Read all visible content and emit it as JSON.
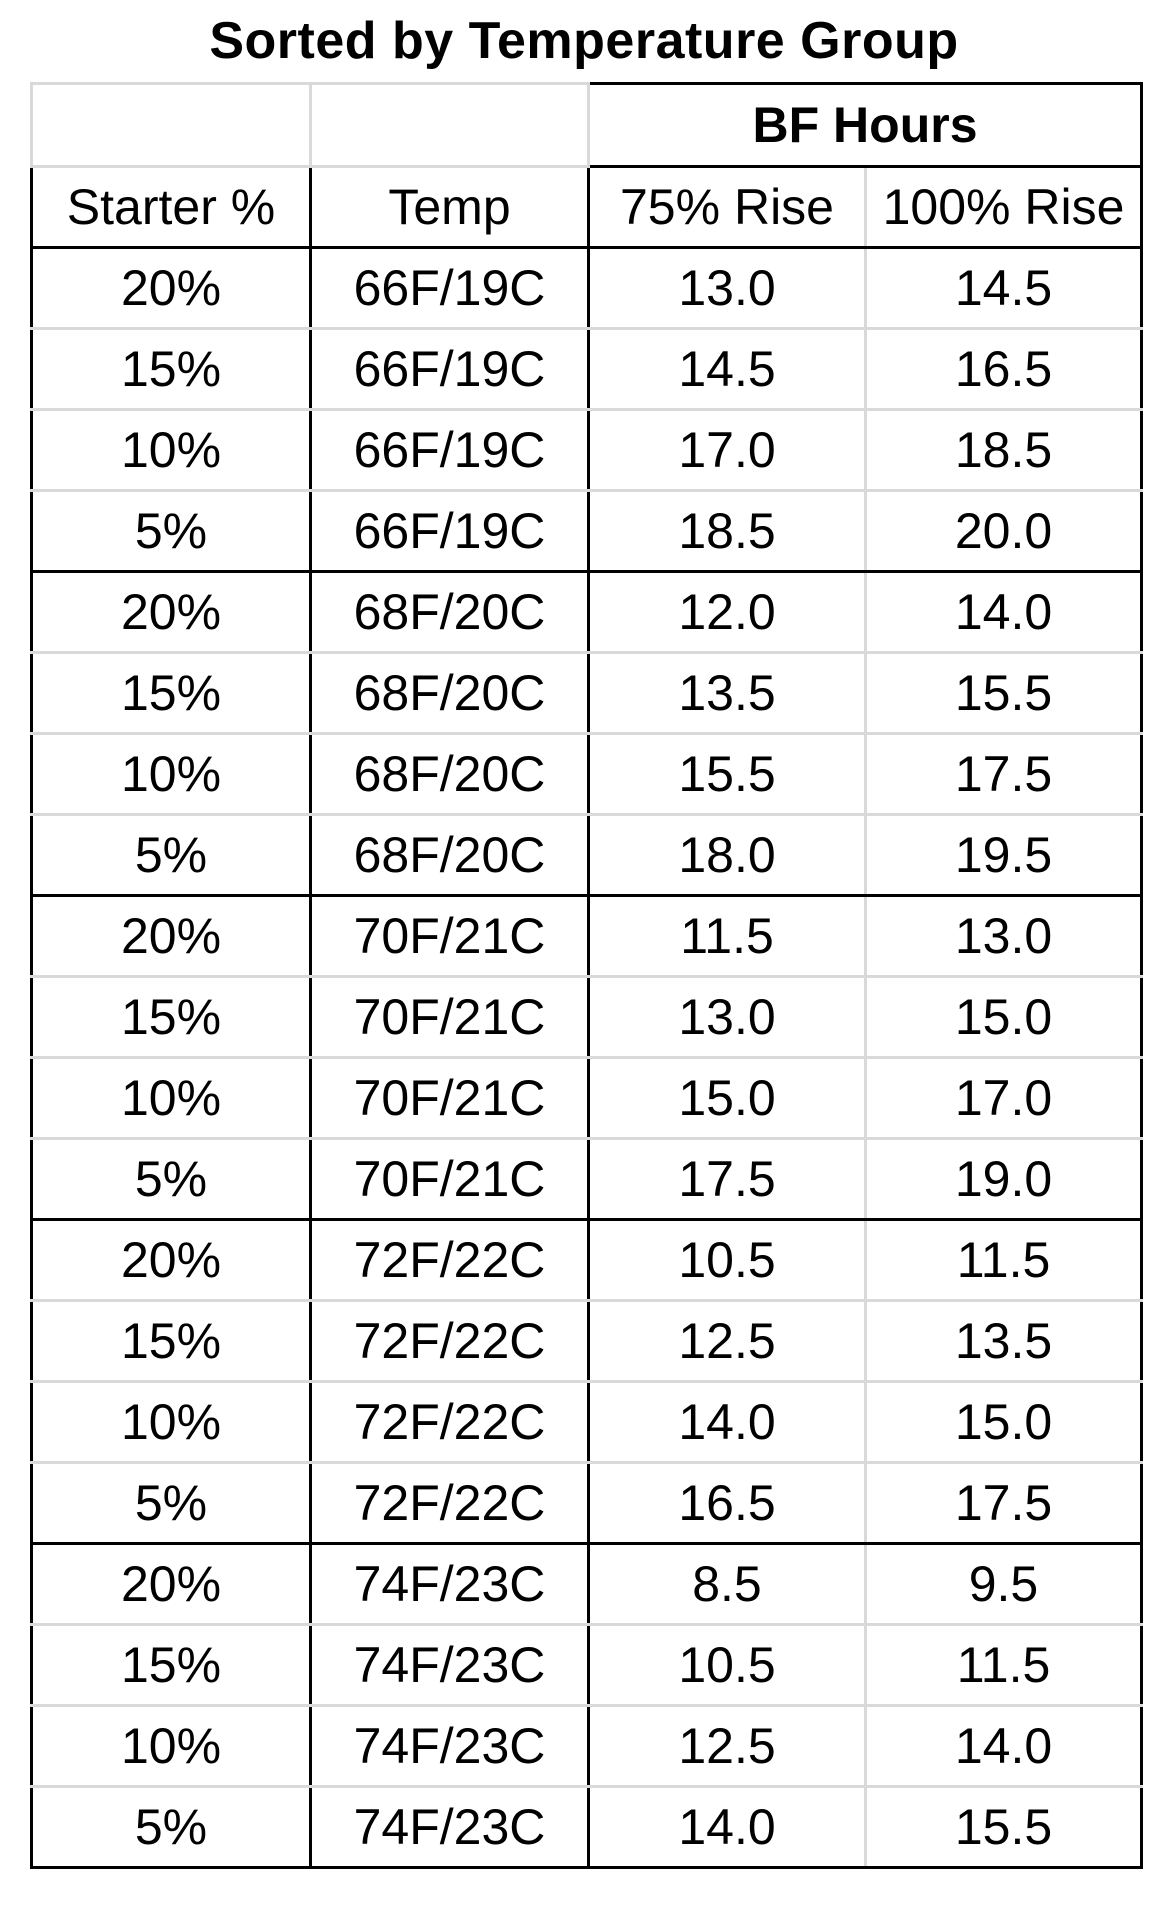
{
  "title": "Sorted by Temperature Group",
  "header": {
    "group_label": "BF Hours",
    "columns": [
      "Starter %",
      "Temp",
      "75% Rise",
      "100% Rise"
    ]
  },
  "groups": [
    {
      "rows": [
        {
          "starter": "20%",
          "temp": "66F/19C",
          "rise75": "13.0",
          "rise100": "14.5"
        },
        {
          "starter": "15%",
          "temp": "66F/19C",
          "rise75": "14.5",
          "rise100": "16.5"
        },
        {
          "starter": "10%",
          "temp": "66F/19C",
          "rise75": "17.0",
          "rise100": "18.5"
        },
        {
          "starter": "5%",
          "temp": "66F/19C",
          "rise75": "18.5",
          "rise100": "20.0"
        }
      ]
    },
    {
      "rows": [
        {
          "starter": "20%",
          "temp": "68F/20C",
          "rise75": "12.0",
          "rise100": "14.0"
        },
        {
          "starter": "15%",
          "temp": "68F/20C",
          "rise75": "13.5",
          "rise100": "15.5"
        },
        {
          "starter": "10%",
          "temp": "68F/20C",
          "rise75": "15.5",
          "rise100": "17.5"
        },
        {
          "starter": "5%",
          "temp": "68F/20C",
          "rise75": "18.0",
          "rise100": "19.5"
        }
      ]
    },
    {
      "rows": [
        {
          "starter": "20%",
          "temp": "70F/21C",
          "rise75": "11.5",
          "rise100": "13.0"
        },
        {
          "starter": "15%",
          "temp": "70F/21C",
          "rise75": "13.0",
          "rise100": "15.0"
        },
        {
          "starter": "10%",
          "temp": "70F/21C",
          "rise75": "15.0",
          "rise100": "17.0"
        },
        {
          "starter": "5%",
          "temp": "70F/21C",
          "rise75": "17.5",
          "rise100": "19.0"
        }
      ]
    },
    {
      "rows": [
        {
          "starter": "20%",
          "temp": "72F/22C",
          "rise75": "10.5",
          "rise100": "11.5"
        },
        {
          "starter": "15%",
          "temp": "72F/22C",
          "rise75": "12.5",
          "rise100": "13.5"
        },
        {
          "starter": "10%",
          "temp": "72F/22C",
          "rise75": "14.0",
          "rise100": "15.0"
        },
        {
          "starter": "5%",
          "temp": "72F/22C",
          "rise75": "16.5",
          "rise100": "17.5"
        }
      ]
    },
    {
      "rows": [
        {
          "starter": "20%",
          "temp": "74F/23C",
          "rise75": "8.5",
          "rise100": "9.5"
        },
        {
          "starter": "15%",
          "temp": "74F/23C",
          "rise75": "10.5",
          "rise100": "11.5"
        },
        {
          "starter": "10%",
          "temp": "74F/23C",
          "rise75": "12.5",
          "rise100": "14.0"
        },
        {
          "starter": "5%",
          "temp": "74F/23C",
          "rise75": "14.0",
          "rise100": "15.5"
        }
      ]
    }
  ]
}
